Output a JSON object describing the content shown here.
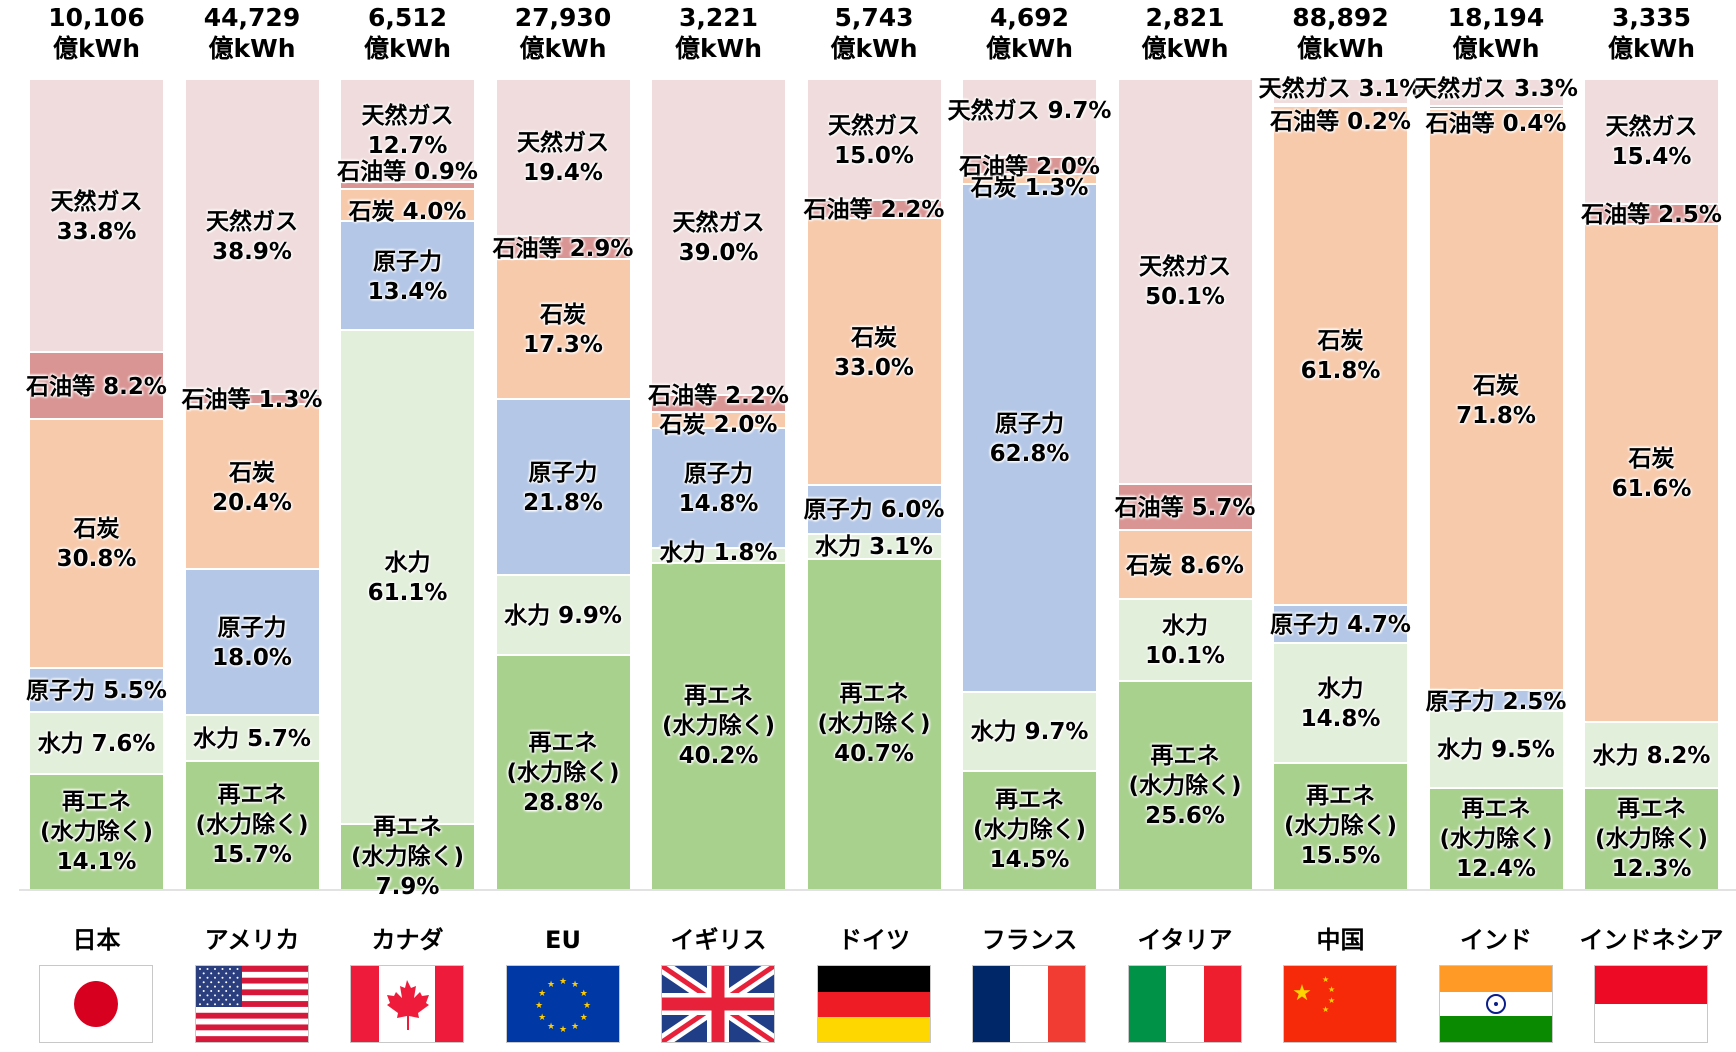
{
  "unit": "億kWh",
  "legend_colors": {
    "天然ガス": "#f0dcdc",
    "石油等": "#d99594",
    "石炭": "#f7caac",
    "原子力": "#b4c7e7",
    "水力": "#e2efda",
    "再エネ(水力除く)": "#a9d18e"
  },
  "countries": [
    {
      "name": "日本",
      "total": "10,106",
      "total_unit": "億kWh",
      "flag": "japan-flag",
      "segments": [
        {
          "source": "天然ガス",
          "value": 33.8,
          "label": "天然ガス\n33.8%"
        },
        {
          "source": "石油等",
          "value": 8.2,
          "label": "石油等 8.2%"
        },
        {
          "source": "石炭",
          "value": 30.8,
          "label": "石炭\n30.8%"
        },
        {
          "source": "原子力",
          "value": 5.5,
          "label": "原子力 5.5%"
        },
        {
          "source": "水力",
          "value": 7.6,
          "label": "水力 7.6%"
        },
        {
          "source": "再エネ(水力除く)",
          "value": 14.1,
          "label": "再エネ\n(水力除く)\n14.1%"
        }
      ]
    },
    {
      "name": "アメリカ",
      "total": "44,729",
      "total_unit": "億kWh",
      "flag": "usa-flag",
      "segments": [
        {
          "source": "天然ガス",
          "value": 38.9,
          "label": "天然ガス\n38.9%"
        },
        {
          "source": "石油等",
          "value": 1.3,
          "label": "石油等 1.3%"
        },
        {
          "source": "石炭",
          "value": 20.4,
          "label": "石炭\n20.4%"
        },
        {
          "source": "原子力",
          "value": 18.0,
          "label": "原子力\n18.0%"
        },
        {
          "source": "水力",
          "value": 5.7,
          "label": "水力 5.7%"
        },
        {
          "source": "再エネ(水力除く)",
          "value": 15.7,
          "label": "再エネ\n(水力除く)\n15.7%"
        }
      ]
    },
    {
      "name": "カナダ",
      "total": "6,512",
      "total_unit": "億kWh",
      "flag": "canada-flag",
      "segments": [
        {
          "source": "天然ガス",
          "value": 12.7,
          "label": "天然ガス\n12.7%"
        },
        {
          "source": "石油等",
          "value": 0.9,
          "label": "石油等 0.9%"
        },
        {
          "source": "石炭",
          "value": 4.0,
          "label": "石炭 4.0%"
        },
        {
          "source": "原子力",
          "value": 13.4,
          "label": "原子力\n13.4%"
        },
        {
          "source": "水力",
          "value": 61.1,
          "label": "水力\n61.1%"
        },
        {
          "source": "再エネ(水力除く)",
          "value": 7.9,
          "label": "再エネ\n(水力除く)\n7.9%"
        }
      ]
    },
    {
      "name": "EU",
      "total": "27,930",
      "total_unit": "億kWh",
      "flag": "eu-flag",
      "segments": [
        {
          "source": "天然ガス",
          "value": 19.4,
          "label": "天然ガス\n19.4%"
        },
        {
          "source": "石油等",
          "value": 2.9,
          "label": "石油等 2.9%"
        },
        {
          "source": "石炭",
          "value": 17.3,
          "label": "石炭\n17.3%"
        },
        {
          "source": "原子力",
          "value": 21.8,
          "label": "原子力\n21.8%"
        },
        {
          "source": "水力",
          "value": 9.9,
          "label": "水力 9.9%"
        },
        {
          "source": "再エネ(水力除く)",
          "value": 28.8,
          "label": "再エネ\n(水力除く)\n28.8%"
        }
      ]
    },
    {
      "name": "イギリス",
      "total": "3,221",
      "total_unit": "億kWh",
      "flag": "uk-flag",
      "segments": [
        {
          "source": "天然ガス",
          "value": 39.0,
          "label": "天然ガス\n39.0%"
        },
        {
          "source": "石油等",
          "value": 2.2,
          "label": "石油等 2.2%"
        },
        {
          "source": "石炭",
          "value": 2.0,
          "label": "石炭 2.0%"
        },
        {
          "source": "原子力",
          "value": 14.8,
          "label": "原子力\n14.8%"
        },
        {
          "source": "水力",
          "value": 1.8,
          "label": "水力 1.8%"
        },
        {
          "source": "再エネ(水力除く)",
          "value": 40.2,
          "label": "再エネ\n(水力除く)\n40.2%"
        }
      ]
    },
    {
      "name": "ドイツ",
      "total": "5,743",
      "total_unit": "億kWh",
      "flag": "germany-flag",
      "segments": [
        {
          "source": "天然ガス",
          "value": 15.0,
          "label": "天然ガス\n15.0%"
        },
        {
          "source": "石油等",
          "value": 2.2,
          "label": "石油等 2.2%"
        },
        {
          "source": "石炭",
          "value": 33.0,
          "label": "石炭\n33.0%"
        },
        {
          "source": "原子力",
          "value": 6.0,
          "label": "原子力 6.0%"
        },
        {
          "source": "水力",
          "value": 3.1,
          "label": "水力 3.1%"
        },
        {
          "source": "再エネ(水力除く)",
          "value": 40.7,
          "label": "再エネ\n(水力除く)\n40.7%"
        }
      ]
    },
    {
      "name": "フランス",
      "total": "4,692",
      "total_unit": "億kWh",
      "flag": "france-flag",
      "segments": [
        {
          "source": "天然ガス",
          "value": 9.7,
          "label": "天然ガス 9.7%"
        },
        {
          "source": "石油等",
          "value": 2.0,
          "label": "石油等 2.0%"
        },
        {
          "source": "石炭",
          "value": 1.3,
          "label": "石炭 1.3%"
        },
        {
          "source": "原子力",
          "value": 62.8,
          "label": "原子力\n62.8%"
        },
        {
          "source": "水力",
          "value": 9.7,
          "label": "水力 9.7%"
        },
        {
          "source": "再エネ(水力除く)",
          "value": 14.5,
          "label": "再エネ\n(水力除く)\n14.5%"
        }
      ]
    },
    {
      "name": "イタリア",
      "total": "2,821",
      "total_unit": "億kWh",
      "flag": "italy-flag",
      "segments": [
        {
          "source": "天然ガス",
          "value": 50.1,
          "label": "天然ガス\n50.1%"
        },
        {
          "source": "石油等",
          "value": 5.7,
          "label": "石油等 5.7%"
        },
        {
          "source": "石炭",
          "value": 8.6,
          "label": "石炭 8.6%"
        },
        {
          "source": "原子力",
          "value": 0,
          "label": ""
        },
        {
          "source": "水力",
          "value": 10.1,
          "label": "水力\n10.1%"
        },
        {
          "source": "再エネ(水力除く)",
          "value": 25.6,
          "label": "再エネ\n(水力除く)\n25.6%"
        }
      ]
    },
    {
      "name": "中国",
      "total": "88,892",
      "total_unit": "億kWh",
      "flag": "china-flag",
      "segments": [
        {
          "source": "天然ガス",
          "value": 3.1,
          "label": "天然ガス 3.1%"
        },
        {
          "source": "石油等",
          "value": 0.2,
          "label": "石油等 0.2%"
        },
        {
          "source": "石炭",
          "value": 61.8,
          "label": "石炭\n61.8%"
        },
        {
          "source": "原子力",
          "value": 4.7,
          "label": "原子力 4.7%"
        },
        {
          "source": "水力",
          "value": 14.8,
          "label": "水力\n14.8%"
        },
        {
          "source": "再エネ(水力除く)",
          "value": 15.5,
          "label": "再エネ\n(水力除く)\n15.5%"
        }
      ]
    },
    {
      "name": "インド",
      "total": "18,194",
      "total_unit": "億kWh",
      "flag": "india-flag",
      "segments": [
        {
          "source": "天然ガス",
          "value": 3.3,
          "label": "天然ガス 3.3%"
        },
        {
          "source": "石油等",
          "value": 0.4,
          "label": "石油等 0.4%"
        },
        {
          "source": "石炭",
          "value": 71.8,
          "label": "石炭\n71.8%"
        },
        {
          "source": "原子力",
          "value": 2.5,
          "label": "原子力 2.5%"
        },
        {
          "source": "水力",
          "value": 9.5,
          "label": "水力 9.5%"
        },
        {
          "source": "再エネ(水力除く)",
          "value": 12.4,
          "label": "再エネ\n(水力除く)\n12.4%"
        }
      ]
    },
    {
      "name": "インドネシア",
      "total": "3,335",
      "total_unit": "億kWh",
      "flag": "indonesia-flag",
      "segments": [
        {
          "source": "天然ガス",
          "value": 15.4,
          "label": "天然ガス\n15.4%"
        },
        {
          "source": "石油等",
          "value": 2.5,
          "label": "石油等 2.5%"
        },
        {
          "source": "石炭",
          "value": 61.6,
          "label": "石炭\n61.6%"
        },
        {
          "source": "原子力",
          "value": 0,
          "label": ""
        },
        {
          "source": "水力",
          "value": 8.2,
          "label": "水力 8.2%"
        },
        {
          "source": "再エネ(水力除く)",
          "value": 12.3,
          "label": "再エネ\n(水力除く)\n12.3%"
        }
      ]
    }
  ],
  "chart_data": {
    "type": "bar",
    "stacked": true,
    "normalized_percent": true,
    "title": "",
    "xlabel": "",
    "ylabel": "",
    "ylim": [
      0,
      100
    ],
    "grid": false,
    "legend": "inline segment labels",
    "categories": [
      "日本",
      "アメリカ",
      "カナダ",
      "EU",
      "イギリス",
      "ドイツ",
      "フランス",
      "イタリア",
      "中国",
      "インド",
      "インドネシア"
    ],
    "totals_label": [
      "10,106 億kWh",
      "44,729 億kWh",
      "6,512 億kWh",
      "27,930 億kWh",
      "3,221 億kWh",
      "5,743 億kWh",
      "4,692 億kWh",
      "2,821 億kWh",
      "88,892 億kWh",
      "18,194 億kWh",
      "3,335 億kWh"
    ],
    "totals": [
      10106,
      44729,
      6512,
      27930,
      3221,
      5743,
      4692,
      2821,
      88892,
      18194,
      3335
    ],
    "series": [
      {
        "name": "再エネ(水力除く)",
        "color": "#a9d18e",
        "values": [
          14.1,
          15.7,
          7.9,
          28.8,
          40.2,
          40.7,
          14.5,
          25.6,
          15.5,
          12.4,
          12.3
        ]
      },
      {
        "name": "水力",
        "color": "#e2efda",
        "values": [
          7.6,
          5.7,
          61.1,
          9.9,
          1.8,
          3.1,
          9.7,
          10.1,
          14.8,
          9.5,
          8.2
        ]
      },
      {
        "name": "原子力",
        "color": "#b4c7e7",
        "values": [
          5.5,
          18.0,
          13.4,
          21.8,
          14.8,
          6.0,
          62.8,
          0,
          4.7,
          2.5,
          0
        ]
      },
      {
        "name": "石炭",
        "color": "#f7caac",
        "values": [
          30.8,
          20.4,
          4.0,
          17.3,
          2.0,
          33.0,
          1.3,
          8.6,
          61.8,
          71.8,
          61.6
        ]
      },
      {
        "name": "石油等",
        "color": "#d99594",
        "values": [
          8.2,
          1.3,
          0.9,
          2.9,
          2.2,
          2.2,
          2.0,
          5.7,
          0.2,
          0.4,
          2.5
        ]
      },
      {
        "name": "天然ガス",
        "color": "#f0dcdc",
        "values": [
          33.8,
          38.9,
          12.7,
          19.4,
          39.0,
          15.0,
          9.7,
          50.1,
          3.1,
          3.3,
          15.4
        ]
      }
    ]
  }
}
